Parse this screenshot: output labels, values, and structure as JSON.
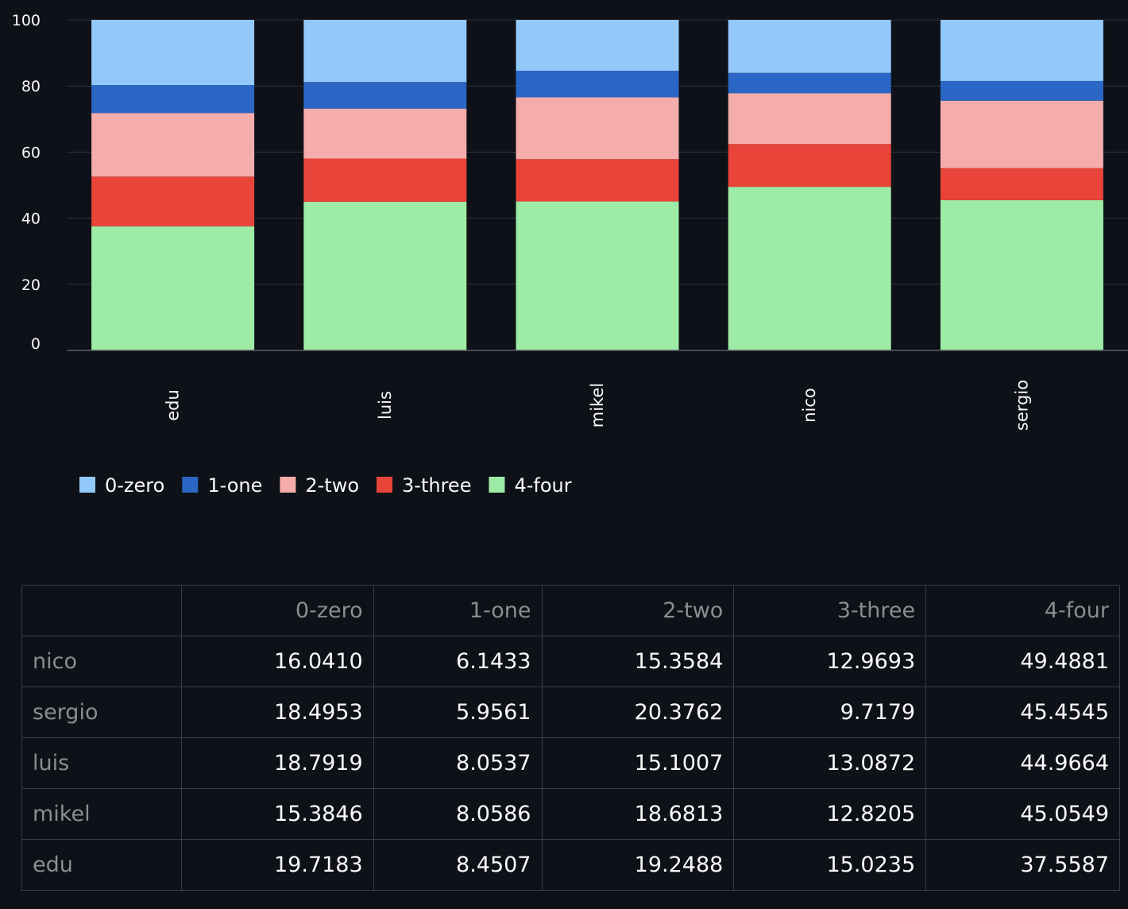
{
  "chart_data": {
    "type": "bar",
    "stacked": true,
    "categories": [
      "edu",
      "luis",
      "mikel",
      "nico",
      "sergio"
    ],
    "series": [
      {
        "name": "0-zero",
        "color": "#93c8fb",
        "values": [
          19.7183,
          18.7919,
          15.3846,
          16.041,
          18.4953
        ]
      },
      {
        "name": "1-one",
        "color": "#2b66c5",
        "values": [
          8.4507,
          8.0537,
          8.0586,
          6.1433,
          5.9561
        ]
      },
      {
        "name": "2-two",
        "color": "#f4adab",
        "values": [
          19.2488,
          15.1007,
          18.6813,
          15.3584,
          20.3762
        ]
      },
      {
        "name": "3-three",
        "color": "#e8443a",
        "values": [
          15.0235,
          13.0872,
          12.8205,
          12.9693,
          9.7179
        ]
      },
      {
        "name": "4-four",
        "color": "#9eeba6",
        "values": [
          37.5587,
          44.9664,
          45.0549,
          49.4881,
          45.4545
        ]
      }
    ],
    "ylim": [
      0,
      100
    ],
    "yticks": [
      0,
      20,
      40,
      60,
      80,
      100
    ],
    "grid": true,
    "legend": "bottom-left"
  },
  "table": {
    "columns": [
      "",
      "0-zero",
      "1-one",
      "2-two",
      "3-three",
      "4-four"
    ],
    "rows": [
      {
        "index": "nico",
        "values": [
          "16.0410",
          "6.1433",
          "15.3584",
          "12.9693",
          "49.4881"
        ]
      },
      {
        "index": "sergio",
        "values": [
          "18.4953",
          "5.9561",
          "20.3762",
          "9.7179",
          "45.4545"
        ]
      },
      {
        "index": "luis",
        "values": [
          "18.7919",
          "8.0537",
          "15.1007",
          "13.0872",
          "44.9664"
        ]
      },
      {
        "index": "mikel",
        "values": [
          "15.3846",
          "8.0586",
          "18.6813",
          "12.8205",
          "45.0549"
        ]
      },
      {
        "index": "edu",
        "values": [
          "19.7183",
          "8.4507",
          "19.2488",
          "15.0235",
          "37.5587"
        ]
      }
    ]
  }
}
